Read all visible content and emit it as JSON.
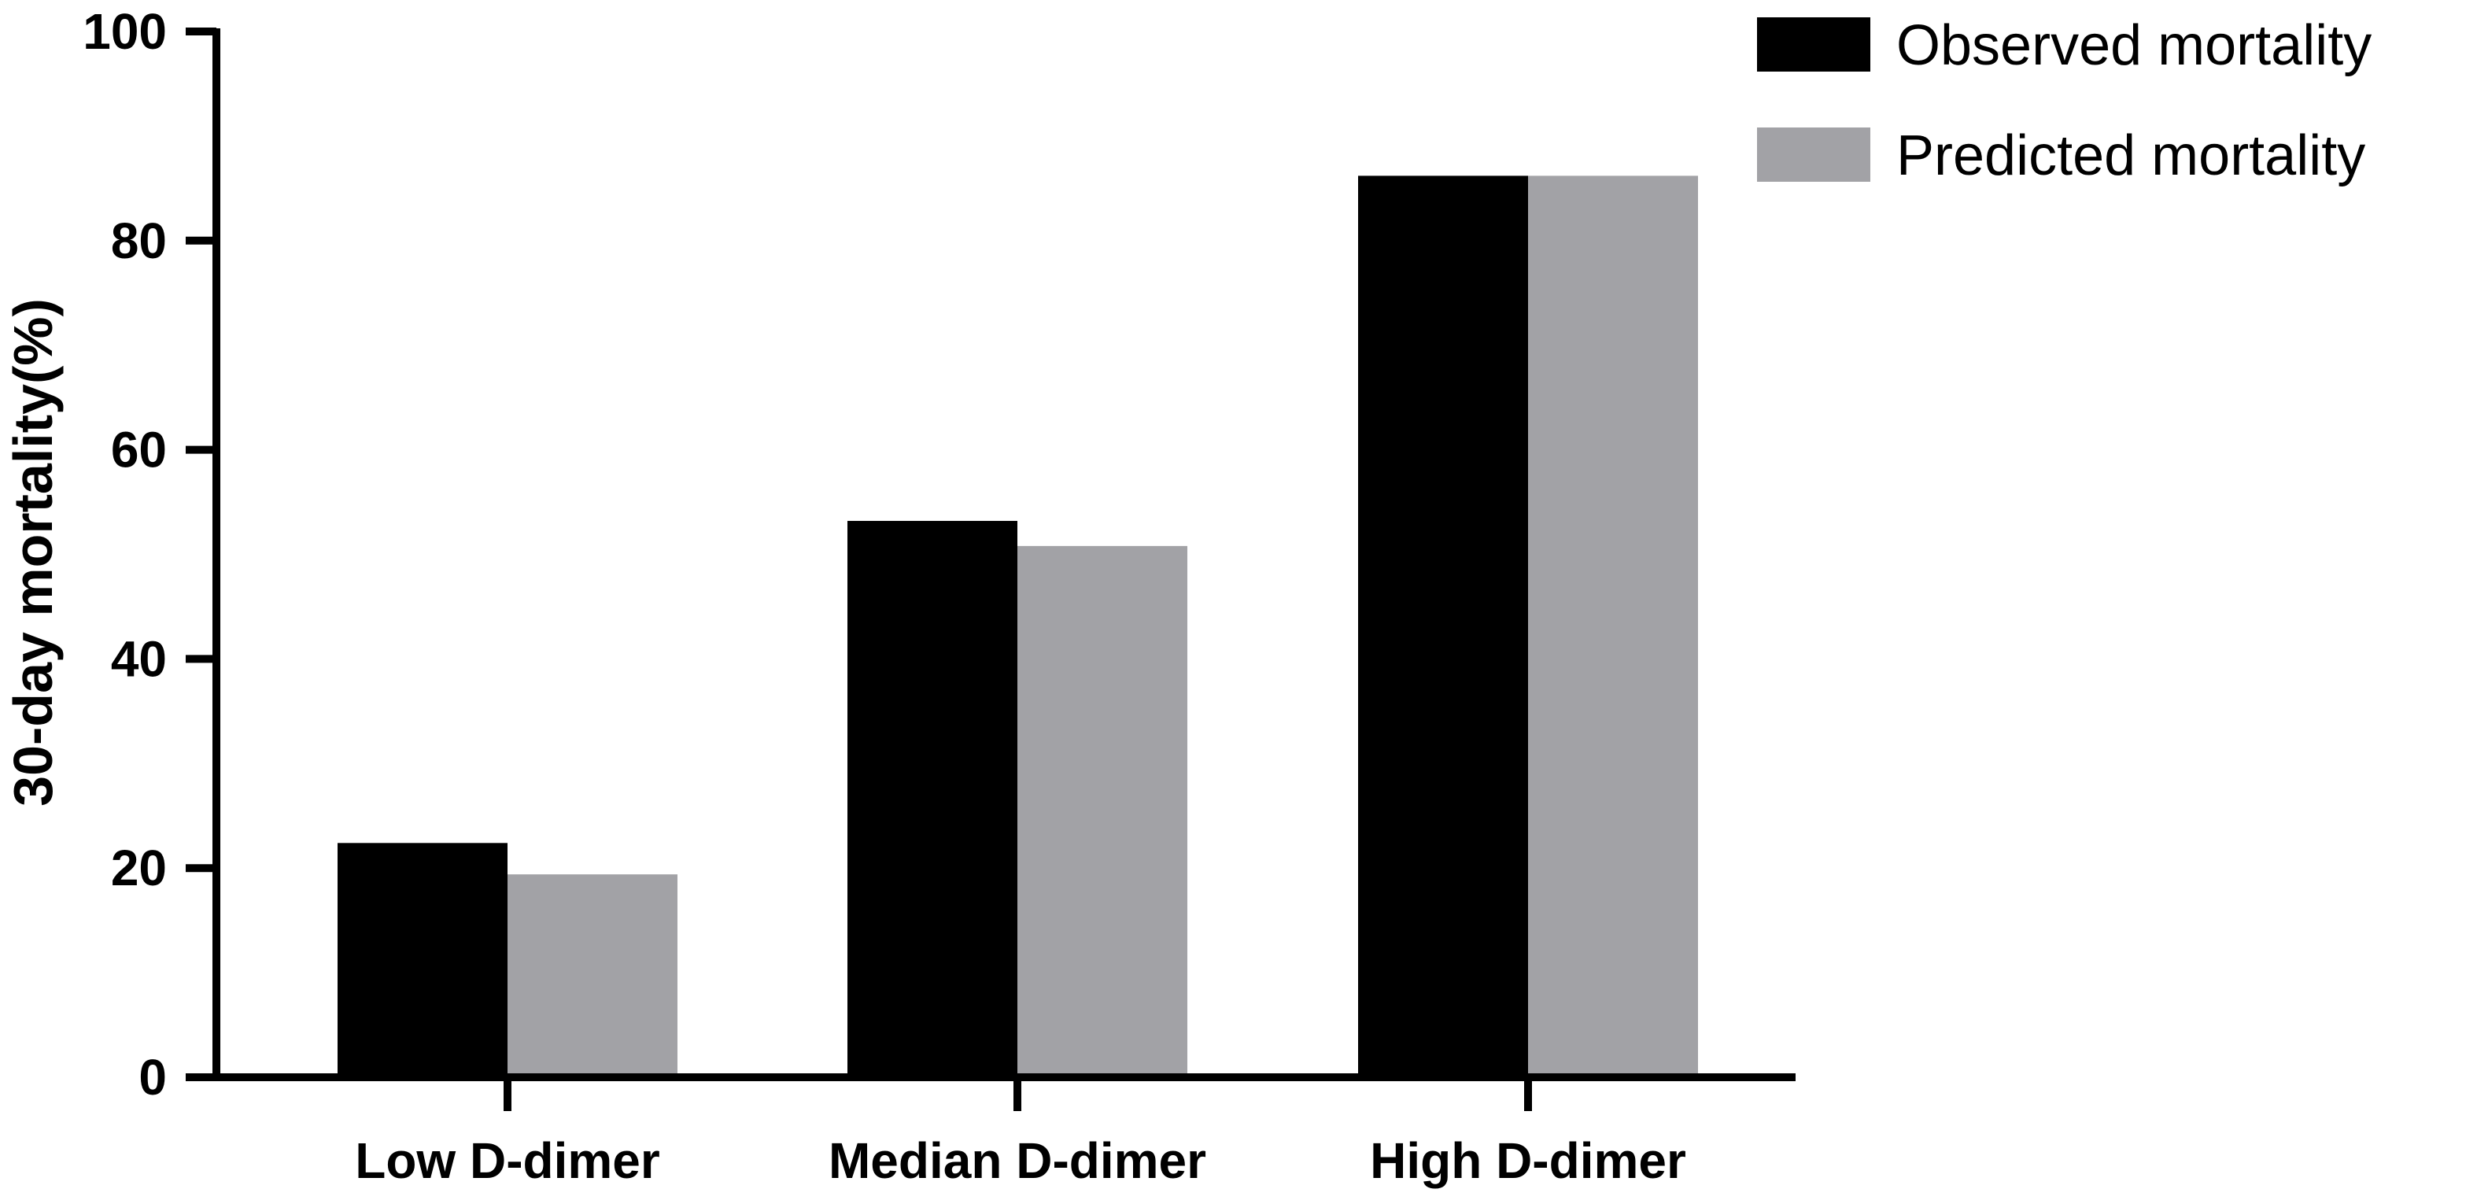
{
  "chart_data": {
    "type": "bar",
    "categories": [
      "Low D-dimer",
      "Median D-dimer",
      "High D-dimer"
    ],
    "series": [
      {
        "name": "Observed mortality",
        "values": [
          22.4,
          53.2,
          86.2
        ],
        "color": "#000000"
      },
      {
        "name": "Predicted mortality",
        "values": [
          19.4,
          50.8,
          86.2
        ],
        "color": "#a2a2a6"
      }
    ],
    "xlabel": "",
    "ylabel": "30-day mortality(%)",
    "ylim": [
      0,
      100
    ],
    "yticks": [
      "0",
      "20",
      "40",
      "60",
      "80",
      "100"
    ],
    "grid": false,
    "legend_position": "top-right"
  }
}
